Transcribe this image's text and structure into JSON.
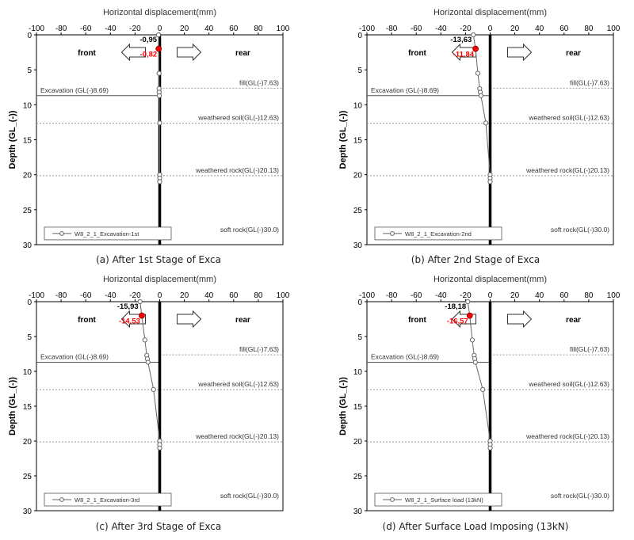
{
  "panel_styles": {
    "axis_color": "#000000",
    "grid_line_color": "#999999",
    "series_color": "#666666",
    "highlight_color": "#ff0000",
    "wall_color": "#000000"
  },
  "chart_data": [
    {
      "type": "line",
      "caption": "(a) After 1st Stage of Exca",
      "xlabel": "Horizontal displacement(mm)",
      "ylabel": "Depth (GL_(-))",
      "xlim": [
        -100,
        100
      ],
      "ylim": [
        0,
        30
      ],
      "y_inverted": true,
      "xticks": [
        -100,
        -80,
        -60,
        -40,
        -20,
        0,
        20,
        40,
        60,
        80,
        100
      ],
      "yticks": [
        0,
        5,
        10,
        15,
        20,
        25,
        30
      ],
      "grid": false,
      "legend_position": "bottom-left",
      "series": [
        {
          "name": "W8_2_1_Excavation-1st",
          "x": [
            -0.95,
            -0.82,
            -0.5,
            -0.5,
            -0.4,
            -0.3,
            0,
            0,
            0,
            0
          ],
          "y": [
            0,
            2,
            5.5,
            7.7,
            8.2,
            8.7,
            12.6,
            20,
            20.5,
            21
          ]
        }
      ],
      "highlight_point": {
        "x": -0.82,
        "y": 2
      },
      "annotations": {
        "top_value": "-0,95",
        "red_value": "-0,82",
        "front": "front",
        "rear": "rear"
      },
      "horizontal_lines": [
        {
          "depth": 7.63,
          "label": "fill(GL(-)7.63)",
          "side": "right",
          "style": "dotted"
        },
        {
          "depth": 8.69,
          "label": "Excavation (GL(-)8.69)",
          "side": "left",
          "style": "solid"
        },
        {
          "depth": 12.63,
          "label": "weathered soil(GL(-)12.63)",
          "side": "both",
          "style": "dotted"
        },
        {
          "depth": 20.13,
          "label": "weathered rock(GL(-)20.13)",
          "side": "both",
          "style": "dotted"
        },
        {
          "depth": 30.0,
          "label": "soft rock(GL(-)30.0)",
          "side": "none",
          "style": "none"
        }
      ]
    },
    {
      "type": "line",
      "caption": "(b) After 2nd Stage of Exca",
      "xlabel": "Horizontal displacement(mm)",
      "ylabel": "Depth (GL_(-))",
      "xlim": [
        -100,
        100
      ],
      "ylim": [
        0,
        30
      ],
      "y_inverted": true,
      "xticks": [
        -100,
        -80,
        -60,
        -40,
        -20,
        0,
        20,
        40,
        60,
        80,
        100
      ],
      "yticks": [
        0,
        5,
        10,
        15,
        20,
        25,
        30
      ],
      "grid": false,
      "legend_position": "bottom-left",
      "series": [
        {
          "name": "W8_2_1_Excavation-2nd",
          "x": [
            -13.63,
            -11.84,
            -10,
            -8.5,
            -8,
            -7.5,
            -3.5,
            0,
            0,
            0
          ],
          "y": [
            0,
            2,
            5.5,
            7.7,
            8.2,
            8.7,
            12.6,
            20,
            20.5,
            21
          ]
        }
      ],
      "highlight_point": {
        "x": -11.84,
        "y": 2
      },
      "annotations": {
        "top_value": "-13,63",
        "red_value": "-11,84",
        "front": "front",
        "rear": "rear"
      },
      "horizontal_lines": [
        {
          "depth": 7.63,
          "label": "fill(GL(-)7.63)",
          "side": "right",
          "style": "dotted"
        },
        {
          "depth": 8.69,
          "label": "Excavation (GL(-)8.69)",
          "side": "left",
          "style": "solid"
        },
        {
          "depth": 12.63,
          "label": "weathered soil(GL(-)12.63)",
          "side": "both",
          "style": "dotted"
        },
        {
          "depth": 20.13,
          "label": "weathered rock(GL(-)20.13)",
          "side": "both",
          "style": "dotted"
        },
        {
          "depth": 30.0,
          "label": "soft rock(GL(-)30.0)",
          "side": "none",
          "style": "none"
        }
      ]
    },
    {
      "type": "line",
      "caption": "(c) After 3rd Stage of Exca",
      "xlabel": "Horizontal displacement(mm)",
      "ylabel": "Depth (GL_(-))",
      "xlim": [
        -100,
        100
      ],
      "ylim": [
        0,
        30
      ],
      "y_inverted": true,
      "xticks": [
        -100,
        -80,
        -60,
        -40,
        -20,
        0,
        20,
        40,
        60,
        80,
        100
      ],
      "yticks": [
        0,
        5,
        10,
        15,
        20,
        25,
        30
      ],
      "grid": false,
      "legend_position": "bottom-left",
      "series": [
        {
          "name": "W8_2_1_Excavation-3rd",
          "x": [
            -15.93,
            -14.53,
            -12,
            -10.5,
            -10,
            -9.5,
            -5,
            0,
            0,
            0
          ],
          "y": [
            0,
            2,
            5.5,
            7.7,
            8.2,
            8.7,
            12.6,
            20,
            20.5,
            21
          ]
        }
      ],
      "highlight_point": {
        "x": -14.53,
        "y": 2
      },
      "annotations": {
        "top_value": "-15,93",
        "red_value": "-14,53",
        "front": "front",
        "rear": "rear"
      },
      "horizontal_lines": [
        {
          "depth": 7.63,
          "label": "fill(GL(-)7.63)",
          "side": "right",
          "style": "dotted"
        },
        {
          "depth": 8.69,
          "label": "Excavation (GL(-)8.69)",
          "side": "left",
          "style": "solid"
        },
        {
          "depth": 12.63,
          "label": "weathered soil(GL(-)12.63)",
          "side": "both",
          "style": "dotted"
        },
        {
          "depth": 20.13,
          "label": "weathered rock(GL(-)20.13)",
          "side": "both",
          "style": "dotted"
        },
        {
          "depth": 30.0,
          "label": "soft rock(GL(-)30.0)",
          "side": "none",
          "style": "none"
        }
      ]
    },
    {
      "type": "line",
      "caption": "(d) After Surface Load Imposing (13kN)",
      "xlabel": "Horizontal displacement(mm)",
      "ylabel": "Depth (GL_(-))",
      "xlim": [
        -100,
        100
      ],
      "ylim": [
        0,
        30
      ],
      "y_inverted": true,
      "xticks": [
        -100,
        -80,
        -60,
        -40,
        -20,
        0,
        20,
        40,
        60,
        80,
        100
      ],
      "yticks": [
        0,
        5,
        10,
        15,
        20,
        25,
        30
      ],
      "grid": false,
      "legend_position": "bottom-left",
      "series": [
        {
          "name": "W8_2_1_Surface load (13kN)",
          "x": [
            -18.18,
            -16.57,
            -14.5,
            -13,
            -12.5,
            -12,
            -6,
            0,
            0,
            0
          ],
          "y": [
            0,
            2,
            5.5,
            7.7,
            8.2,
            8.7,
            12.6,
            20,
            20.5,
            21
          ]
        }
      ],
      "highlight_point": {
        "x": -16.57,
        "y": 2
      },
      "annotations": {
        "top_value": "-18,18",
        "red_value": "-16,57",
        "front": "front",
        "rear": "rear"
      },
      "horizontal_lines": [
        {
          "depth": 7.63,
          "label": "fill(GL(-)7.63)",
          "side": "right",
          "style": "dotted"
        },
        {
          "depth": 8.69,
          "label": "Excavation (GL(-)8.69)",
          "side": "left",
          "style": "solid"
        },
        {
          "depth": 12.63,
          "label": "weathered soil(GL(-)12.63)",
          "side": "both",
          "style": "dotted"
        },
        {
          "depth": 20.13,
          "label": "weathered rock(GL(-)20.13)",
          "side": "both",
          "style": "dotted"
        },
        {
          "depth": 30.0,
          "label": "soft rock(GL(-)30.0)",
          "side": "none",
          "style": "none"
        }
      ]
    }
  ]
}
